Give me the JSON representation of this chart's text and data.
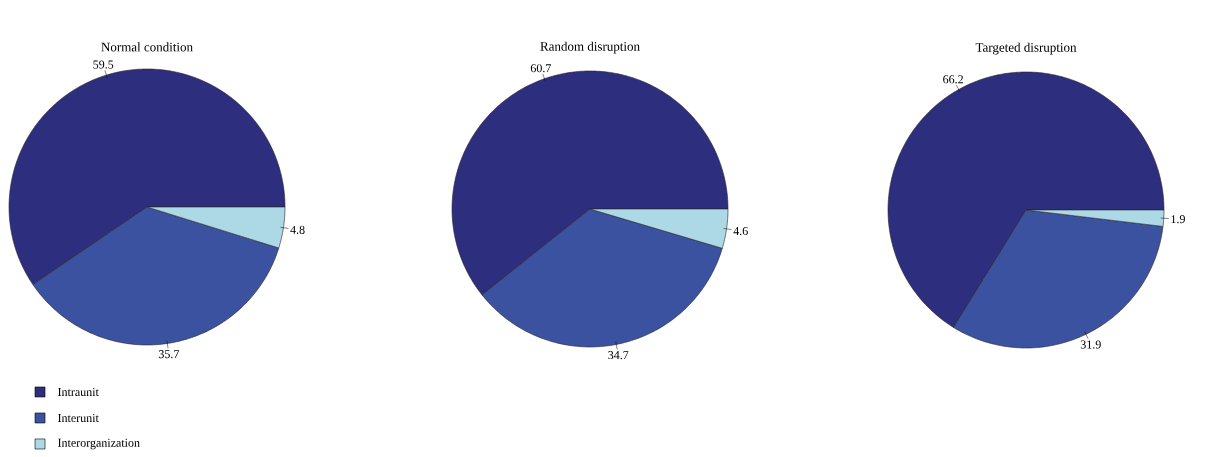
{
  "chart_data": [
    {
      "type": "pie",
      "title": "Normal condition",
      "categories": [
        "Intraunit",
        "Interunit",
        "Interorganization"
      ],
      "values": [
        59.5,
        35.7,
        4.8
      ],
      "colors": [
        "#2e2e7e",
        "#3b52a1",
        "#add8e6"
      ],
      "data_labels": true,
      "legend": "bottom left"
    },
    {
      "type": "pie",
      "title": "Random disruption",
      "categories": [
        null,
        null,
        null
      ],
      "values": [
        60.7,
        34.7,
        4.6
      ],
      "colors": [
        "#2e2e7e",
        "#3b52a1",
        "#add8e6"
      ],
      "data_labels": true
    },
    {
      "type": "pie",
      "title": "Targeted disruption",
      "categories": [
        null,
        null,
        null
      ],
      "values": [
        66.2,
        31.9,
        1.9
      ],
      "colors": [
        "#2e2e7e",
        "#3b52a1",
        "#add8e6"
      ],
      "data_labels": true
    }
  ]
}
